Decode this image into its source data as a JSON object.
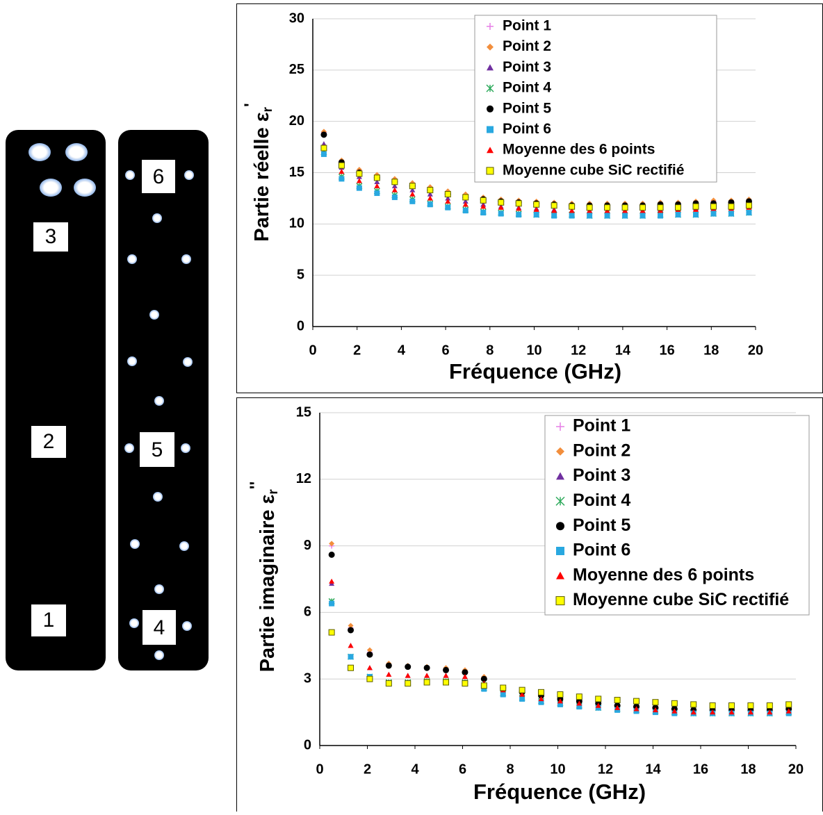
{
  "samples": {
    "left": [
      "3",
      "2",
      "1"
    ],
    "right": [
      "6",
      "5",
      "4"
    ]
  },
  "chart_data": [
    {
      "type": "scatter",
      "x_label": "Fréquence (GHz)",
      "y_label": "Partie réelle ε",
      "y_label_sub": "r",
      "y_label_sup": "'",
      "x": [
        0.5,
        1.3,
        2.1,
        2.9,
        3.7,
        4.5,
        5.3,
        6.1,
        6.9,
        7.7,
        8.5,
        9.3,
        10.1,
        10.9,
        11.7,
        12.5,
        13.3,
        14.1,
        14.9,
        15.7,
        16.5,
        17.3,
        18.1,
        18.9,
        19.7
      ],
      "xlim": [
        0,
        20
      ],
      "xticks": [
        0,
        2,
        4,
        6,
        8,
        10,
        12,
        14,
        16,
        18,
        20
      ],
      "ylim": [
        0,
        30
      ],
      "yticks": [
        0,
        5,
        10,
        15,
        20,
        25,
        30
      ],
      "grid": true,
      "series": [
        {
          "name": "Point 1",
          "color": "#e67ee6",
          "marker": "plus",
          "values": [
            18.9,
            16.1,
            15.2,
            14.7,
            14.3,
            13.9,
            13.5,
            13.1,
            12.8,
            12.5,
            12.3,
            12.2,
            12.1,
            12.0,
            11.9,
            11.9,
            11.9,
            11.9,
            11.9,
            12.0,
            12.0,
            12.1,
            12.2,
            12.2,
            12.3
          ]
        },
        {
          "name": "Point 2",
          "color": "#f28e3c",
          "marker": "diamond",
          "values": [
            19.0,
            16.2,
            15.3,
            14.8,
            14.4,
            14.0,
            13.6,
            13.2,
            12.9,
            12.6,
            12.4,
            12.3,
            12.2,
            12.1,
            12.0,
            12.0,
            12.0,
            12.0,
            12.0,
            12.1,
            12.1,
            12.2,
            12.3,
            12.3,
            12.4
          ]
        },
        {
          "name": "Point 3",
          "color": "#7030a0",
          "marker": "triangle",
          "values": [
            17.8,
            15.5,
            14.6,
            14.1,
            13.7,
            13.3,
            12.9,
            12.5,
            12.2,
            11.9,
            11.7,
            11.6,
            11.5,
            11.4,
            11.3,
            11.3,
            11.3,
            11.3,
            11.3,
            11.4,
            11.4,
            11.5,
            11.5,
            11.6,
            11.7
          ]
        },
        {
          "name": "Point 4",
          "color": "#2eaa5c",
          "marker": "star",
          "values": [
            17.0,
            14.6,
            13.7,
            13.2,
            12.8,
            12.4,
            12.0,
            11.7,
            11.4,
            11.2,
            11.1,
            11.0,
            10.9,
            10.9,
            10.9,
            10.8,
            10.8,
            10.8,
            10.8,
            10.9,
            10.9,
            10.9,
            11.0,
            11.0,
            11.1
          ]
        },
        {
          "name": "Point 5",
          "color": "#000000",
          "marker": "circle",
          "values": [
            18.7,
            16.0,
            15.0,
            14.5,
            14.1,
            13.7,
            13.3,
            12.9,
            12.6,
            12.4,
            12.2,
            12.1,
            12.0,
            11.9,
            11.8,
            11.8,
            11.8,
            11.8,
            11.8,
            11.9,
            11.9,
            12.0,
            12.0,
            12.1,
            12.2
          ]
        },
        {
          "name": "Point 6",
          "color": "#29a8e0",
          "marker": "square",
          "values": [
            16.8,
            14.4,
            13.5,
            13.0,
            12.6,
            12.2,
            11.9,
            11.6,
            11.3,
            11.1,
            11.0,
            10.9,
            10.9,
            10.8,
            10.8,
            10.8,
            10.8,
            10.8,
            10.8,
            10.8,
            10.9,
            10.9,
            11.0,
            11.0,
            11.1
          ]
        },
        {
          "name": "Moyenne des 6 points",
          "color": "#ff0000",
          "marker": "triangle",
          "values": [
            17.5,
            15.1,
            14.2,
            13.7,
            13.3,
            12.9,
            12.5,
            12.2,
            11.9,
            11.7,
            11.6,
            11.5,
            11.4,
            11.3,
            11.3,
            11.3,
            11.3,
            11.3,
            11.3,
            11.3,
            11.4,
            11.4,
            11.5,
            11.5,
            11.6
          ]
        },
        {
          "name": "Moyenne cube SiC rectifié",
          "color": "#ffff00",
          "marker": "boxed",
          "values": [
            17.4,
            15.7,
            14.9,
            14.5,
            14.1,
            13.7,
            13.3,
            12.9,
            12.6,
            12.3,
            12.1,
            12.0,
            11.9,
            11.8,
            11.7,
            11.6,
            11.6,
            11.6,
            11.6,
            11.6,
            11.6,
            11.7,
            11.7,
            11.7,
            11.8
          ]
        }
      ]
    },
    {
      "type": "scatter",
      "x_label": "Fréquence (GHz)",
      "y_label": "Partie imaginaire ε",
      "y_label_sub": "r",
      "y_label_sup": "''",
      "x": [
        0.5,
        1.3,
        2.1,
        2.9,
        3.7,
        4.5,
        5.3,
        6.1,
        6.9,
        7.7,
        8.5,
        9.3,
        10.1,
        10.9,
        11.7,
        12.5,
        13.3,
        14.1,
        14.9,
        15.7,
        16.5,
        17.3,
        18.1,
        18.9,
        19.7
      ],
      "xlim": [
        0,
        20
      ],
      "xticks": [
        0,
        2,
        4,
        6,
        8,
        10,
        12,
        14,
        16,
        18,
        20
      ],
      "ylim": [
        0,
        15
      ],
      "yticks": [
        0,
        3,
        6,
        9,
        12,
        15
      ],
      "grid": true,
      "series": [
        {
          "name": "Point 1",
          "color": "#e67ee6",
          "marker": "plus",
          "values": [
            9.0,
            5.3,
            4.2,
            3.65,
            3.55,
            3.5,
            3.45,
            3.35,
            3.05,
            2.6,
            2.4,
            2.2,
            2.1,
            2.0,
            1.9,
            1.8,
            1.75,
            1.7,
            1.65,
            1.6,
            1.6,
            1.6,
            1.6,
            1.6,
            1.6
          ]
        },
        {
          "name": "Point 2",
          "color": "#f28e3c",
          "marker": "diamond",
          "values": [
            9.1,
            5.4,
            4.3,
            3.7,
            3.6,
            3.55,
            3.5,
            3.4,
            3.1,
            2.6,
            2.4,
            2.25,
            2.1,
            2.0,
            1.9,
            1.85,
            1.8,
            1.75,
            1.7,
            1.65,
            1.6,
            1.6,
            1.6,
            1.6,
            1.65
          ]
        },
        {
          "name": "Point 3",
          "color": "#7030a0",
          "marker": "triangle",
          "values": [
            7.3,
            4.5,
            3.5,
            3.2,
            3.15,
            3.15,
            3.15,
            3.1,
            2.8,
            2.5,
            2.3,
            2.1,
            2.0,
            1.9,
            1.8,
            1.7,
            1.65,
            1.6,
            1.55,
            1.5,
            1.5,
            1.5,
            1.5,
            1.5,
            1.55
          ]
        },
        {
          "name": "Point 4",
          "color": "#2eaa5c",
          "marker": "star",
          "values": [
            6.5,
            4.0,
            3.1,
            2.85,
            2.85,
            2.9,
            2.9,
            2.85,
            2.6,
            2.35,
            2.15,
            2.0,
            1.9,
            1.8,
            1.7,
            1.65,
            1.6,
            1.55,
            1.5,
            1.45,
            1.45,
            1.45,
            1.45,
            1.45,
            1.5
          ]
        },
        {
          "name": "Point 5",
          "color": "#000000",
          "marker": "circle",
          "values": [
            8.6,
            5.2,
            4.1,
            3.6,
            3.55,
            3.5,
            3.4,
            3.3,
            3.0,
            2.6,
            2.4,
            2.25,
            2.1,
            2.0,
            1.9,
            1.8,
            1.75,
            1.7,
            1.65,
            1.6,
            1.6,
            1.6,
            1.6,
            1.6,
            1.65
          ]
        },
        {
          "name": "Point 6",
          "color": "#29a8e0",
          "marker": "square",
          "values": [
            6.4,
            4.0,
            3.1,
            2.8,
            2.8,
            2.85,
            2.85,
            2.8,
            2.55,
            2.3,
            2.1,
            1.95,
            1.85,
            1.75,
            1.7,
            1.6,
            1.55,
            1.5,
            1.45,
            1.45,
            1.45,
            1.45,
            1.45,
            1.45,
            1.45
          ]
        },
        {
          "name": "Moyenne des 6 points",
          "color": "#ff0000",
          "marker": "triangle",
          "values": [
            7.4,
            4.5,
            3.5,
            3.2,
            3.15,
            3.15,
            3.15,
            3.1,
            2.8,
            2.5,
            2.3,
            2.1,
            2.0,
            1.9,
            1.8,
            1.7,
            1.65,
            1.6,
            1.55,
            1.5,
            1.5,
            1.5,
            1.5,
            1.5,
            1.55
          ]
        },
        {
          "name": "Moyenne cube SiC rectifié",
          "color": "#ffff00",
          "marker": "boxed",
          "values": [
            5.1,
            3.5,
            3.0,
            2.8,
            2.8,
            2.85,
            2.85,
            2.8,
            2.7,
            2.6,
            2.5,
            2.4,
            2.3,
            2.2,
            2.1,
            2.05,
            2.0,
            1.95,
            1.9,
            1.85,
            1.8,
            1.8,
            1.8,
            1.8,
            1.85
          ]
        }
      ]
    }
  ]
}
